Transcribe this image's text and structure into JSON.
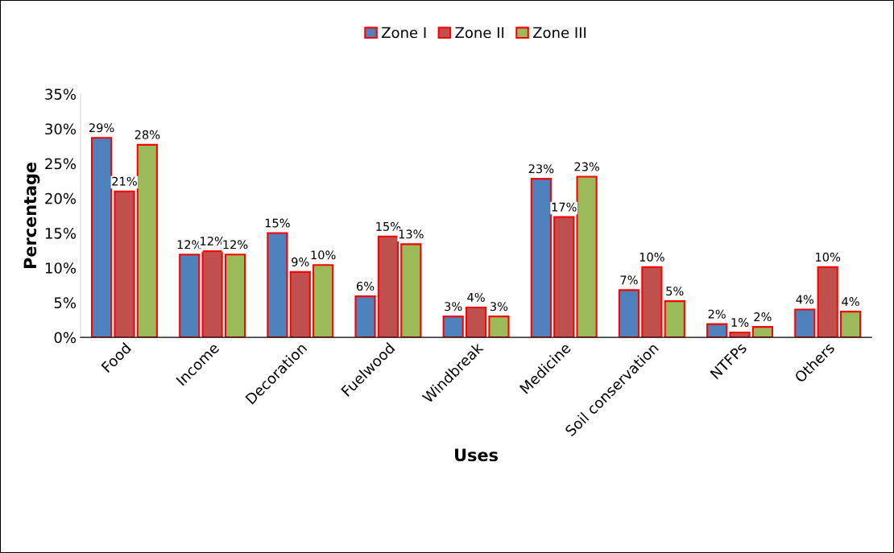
{
  "chart_data": {
    "type": "bar",
    "xlabel": "Uses",
    "ylabel": "Percentage",
    "categories": [
      "Food",
      "Income",
      "Decoration",
      "Fuelwood",
      "Windbreak",
      "Medicine",
      "Soil conservation",
      "NTFPs",
      "Others"
    ],
    "series": [
      {
        "name": "Zone I",
        "color": "#4f81bd",
        "values": [
          28.7,
          11.9,
          15.0,
          5.9,
          3.0,
          22.8,
          6.8,
          1.9,
          4.0
        ],
        "value_labels": [
          "29%",
          "12%",
          "15%",
          "6%",
          "3%",
          "23%",
          "7%",
          "2%",
          "4%"
        ]
      },
      {
        "name": "Zone II",
        "color": "#c0504d",
        "values": [
          21.0,
          12.4,
          9.4,
          14.5,
          4.3,
          17.3,
          10.1,
          0.7,
          10.1
        ],
        "value_labels": [
          "21%",
          "12%",
          "9%",
          "15%",
          "4%",
          "17%",
          "10%",
          "1%",
          "10%"
        ]
      },
      {
        "name": "Zone III",
        "color": "#9bbb59",
        "values": [
          27.7,
          11.9,
          10.4,
          13.4,
          3.0,
          23.1,
          5.2,
          1.5,
          3.7
        ],
        "value_labels": [
          "28%",
          "12%",
          "10%",
          "13%",
          "3%",
          "23%",
          "5%",
          "2%",
          "4%"
        ]
      }
    ],
    "ylim": [
      0,
      35
    ],
    "yticks": [
      {
        "value": 0,
        "label": "0%"
      },
      {
        "value": 5,
        "label": "5%"
      },
      {
        "value": 10,
        "label": "10%"
      },
      {
        "value": 15,
        "label": "15%"
      },
      {
        "value": 20,
        "label": "20%"
      },
      {
        "value": 25,
        "label": "25%"
      },
      {
        "value": 30,
        "label": "30%"
      },
      {
        "value": 35,
        "label": "35%"
      }
    ],
    "grid": false,
    "legend": "top"
  }
}
